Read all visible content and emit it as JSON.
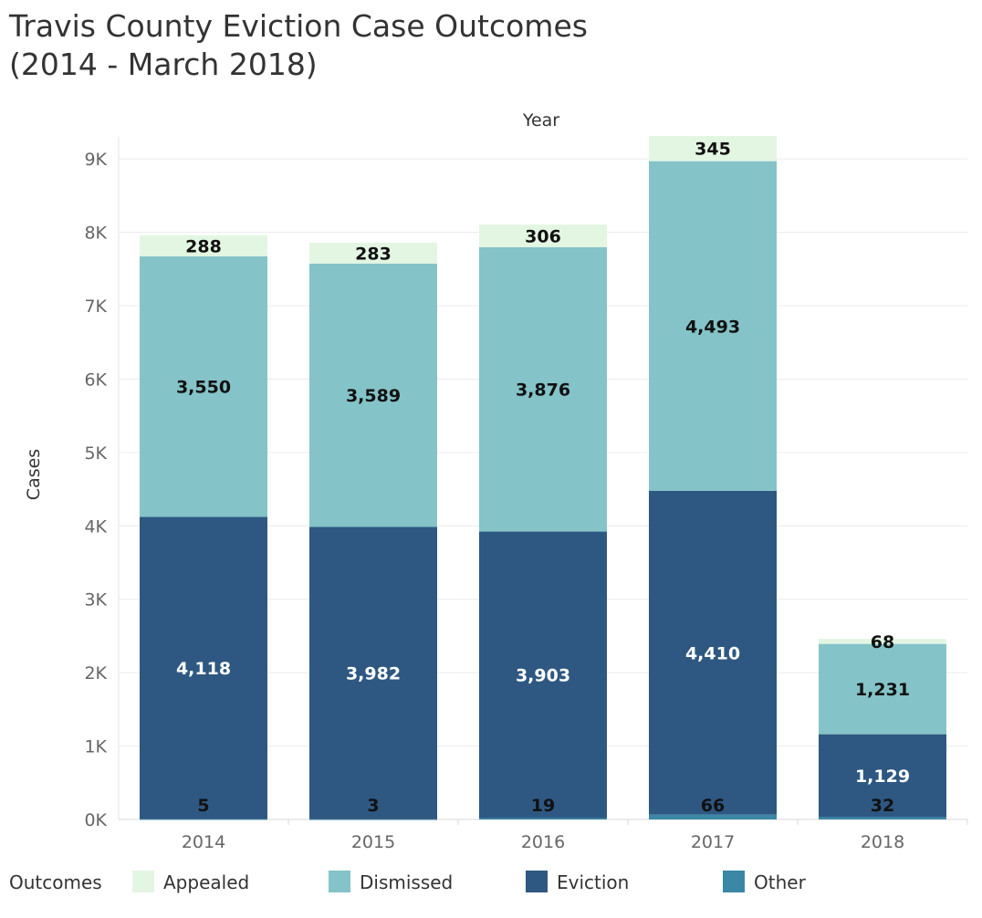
{
  "chart_data": {
    "type": "bar",
    "stacked": true,
    "title": "Travis County Eviction Case Outcomes",
    "subtitle": "(2014 - March 2018)",
    "x_axis_title": "Year",
    "ylabel": "Cases",
    "categories": [
      "2014",
      "2015",
      "2016",
      "2017",
      "2018"
    ],
    "ylim": [
      0,
      9300
    ],
    "y_ticks": [
      {
        "value": 0,
        "label": "0K"
      },
      {
        "value": 1000,
        "label": "1K"
      },
      {
        "value": 2000,
        "label": "2K"
      },
      {
        "value": 3000,
        "label": "3K"
      },
      {
        "value": 4000,
        "label": "4K"
      },
      {
        "value": 5000,
        "label": "5K"
      },
      {
        "value": 6000,
        "label": "6K"
      },
      {
        "value": 7000,
        "label": "7K"
      },
      {
        "value": 8000,
        "label": "8K"
      },
      {
        "value": 9000,
        "label": "9K"
      }
    ],
    "grid": true,
    "legend_title": "Outcomes",
    "legend_position": "bottom",
    "series": [
      {
        "name": "Other",
        "color": "#3a87a6",
        "label_color": "#111111",
        "values": [
          5,
          3,
          19,
          66,
          32
        ],
        "labels": [
          "5",
          "3",
          "19",
          "66",
          "32"
        ]
      },
      {
        "name": "Eviction",
        "color": "#2e5882",
        "label_color": "#ffffff",
        "values": [
          4118,
          3982,
          3903,
          4410,
          1129
        ],
        "labels": [
          "4,118",
          "3,982",
          "3,903",
          "4,410",
          "1,129"
        ]
      },
      {
        "name": "Dismissed",
        "color": "#84c3c8",
        "label_color": "#111111",
        "values": [
          3550,
          3589,
          3876,
          4493,
          1231
        ],
        "labels": [
          "3,550",
          "3,589",
          "3,876",
          "4,493",
          "1,231"
        ]
      },
      {
        "name": "Appealed",
        "color": "#e3f6e2",
        "label_color": "#111111",
        "values": [
          288,
          283,
          306,
          345,
          68
        ],
        "labels": [
          "288",
          "283",
          "306",
          "345",
          "68"
        ]
      }
    ],
    "legend_order": [
      "Appealed",
      "Dismissed",
      "Eviction",
      "Other"
    ]
  }
}
